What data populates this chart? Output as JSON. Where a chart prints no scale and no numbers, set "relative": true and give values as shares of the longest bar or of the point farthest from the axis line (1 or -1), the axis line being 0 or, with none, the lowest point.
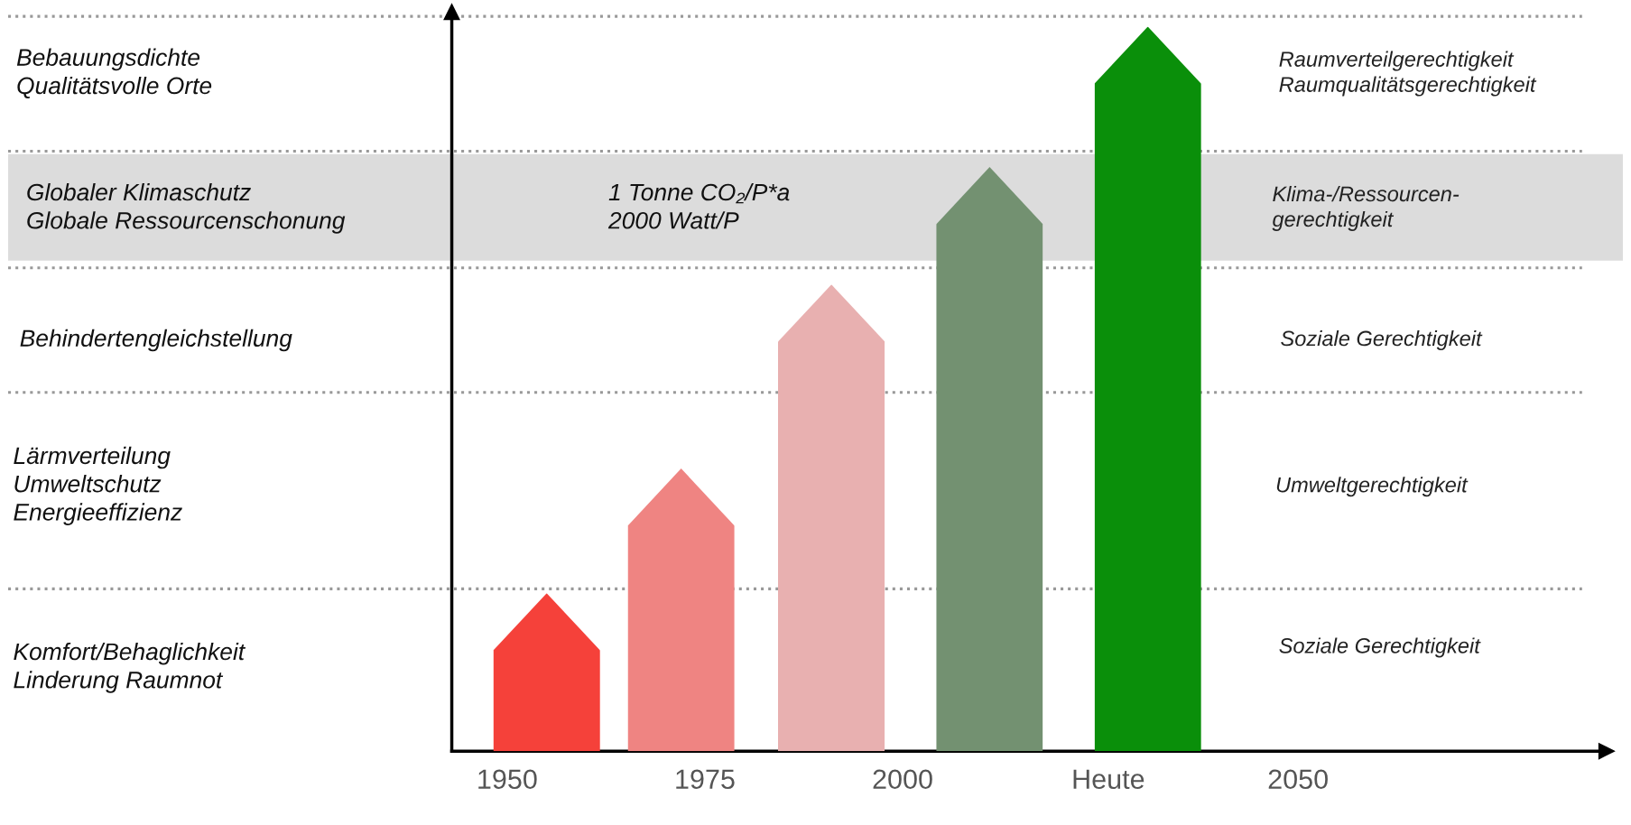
{
  "chart_data": {
    "type": "bar",
    "relative": true,
    "x": [
      1955,
      1972,
      1991,
      2011,
      2031
    ],
    "values": [
      0.218,
      0.39,
      0.644,
      0.806,
      1
    ],
    "colors": [
      "#f5413a",
      "#ef8482",
      "#e8b0b0",
      "#739171",
      "#0a8f0a"
    ],
    "xlim": [
      1943,
      2089
    ],
    "xticks": [
      1950,
      1975,
      2000,
      {
        "value": 2026,
        "label": "Heute"
      },
      2050
    ],
    "tick_labels": "x",
    "ref_lines": [
      {
        "axis": "y",
        "value": 1.014,
        "color": "#999999",
        "line_style": "dotted"
      },
      {
        "axis": "y",
        "value": 0.828,
        "color": "#999999",
        "line_style": "dotted"
      },
      {
        "axis": "y",
        "value": 0.667,
        "color": "#999999",
        "line_style": "dotted"
      },
      {
        "axis": "y",
        "value": 0.495,
        "color": "#999999",
        "line_style": "dotted"
      },
      {
        "axis": "y",
        "value": 0.224,
        "color": "#999999",
        "line_style": "dotted"
      }
    ],
    "bands": [
      {
        "axis": "y",
        "from": 0.677,
        "to": 0.824,
        "color": "#dcdcdc"
      }
    ],
    "annotations": [
      "Bebauungsdichte\nQualitätsvolle Orte",
      "Globaler Klimaschutz\nGlobale Ressourcenschonung",
      "Behindertengleichstellung",
      "Lärmverteilung\nUmweltschutz\nEnergieeffizienz",
      "Komfort/Behaglichkeit\nLinderung Raumnot",
      "1 Tonne CO₂/P*a\n2000 Watt/P",
      "Raumverteilgerechtigkeit\nRaumqualitätsgerechtigkeit",
      "Klima-/Ressourcen-\ngerechtigkeit",
      "Soziale Gerechtigkeit",
      "Umweltgerechtigkeit",
      "Soziale Gerechtigkeit"
    ]
  }
}
